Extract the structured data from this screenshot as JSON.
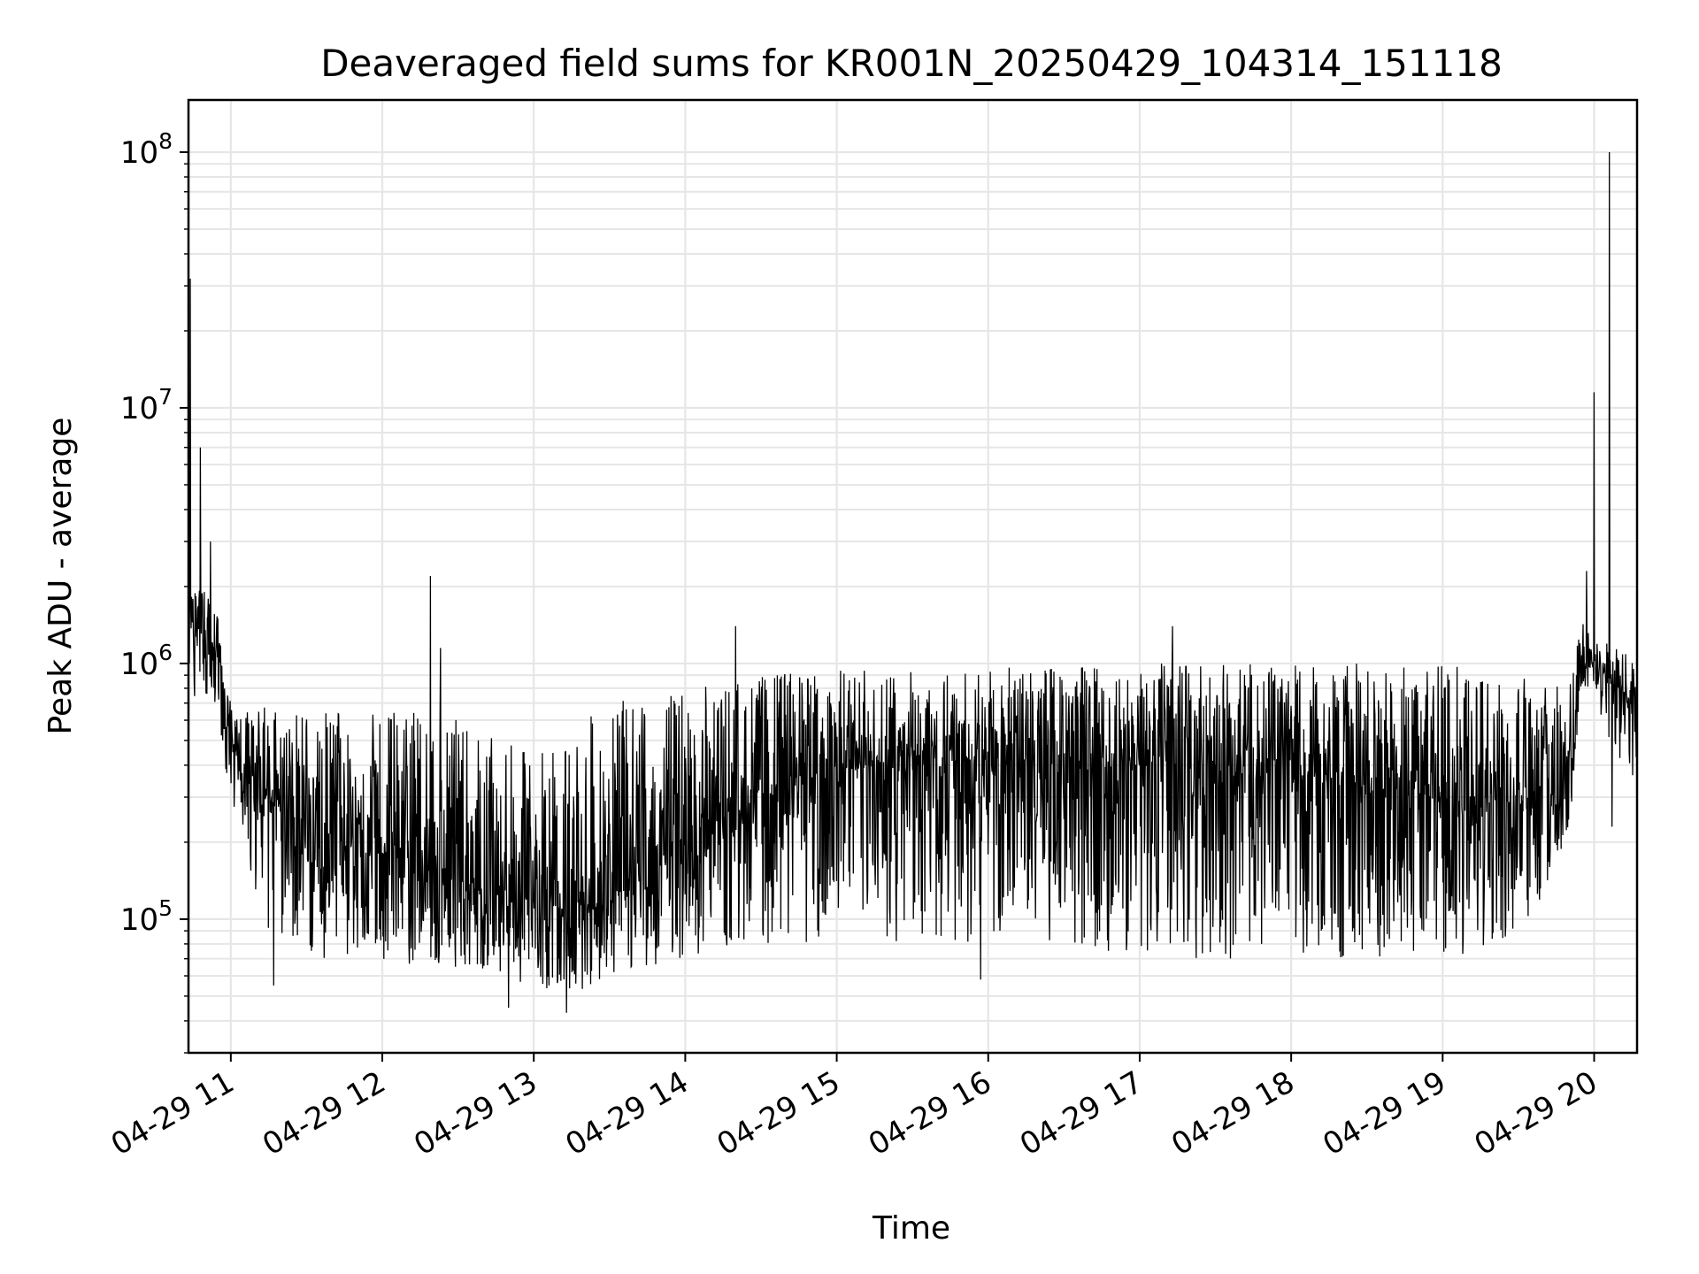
{
  "chart_data": {
    "type": "line",
    "title": "Deaveraged field sums for KR001N_20250429_104314_151118",
    "xlabel": "Time",
    "ylabel": "Peak ADU - average",
    "y_scale": "log",
    "ylim": [
      30000,
      160000000
    ],
    "xlim": [
      "2025-04-29 10:43:14",
      "2025-04-29 20:17:00"
    ],
    "y_ticks": [
      {
        "base": "10",
        "exp": "5",
        "value": 100000
      },
      {
        "base": "10",
        "exp": "6",
        "value": 1000000
      },
      {
        "base": "10",
        "exp": "7",
        "value": 10000000
      },
      {
        "base": "10",
        "exp": "8",
        "value": 100000000
      }
    ],
    "x_ticks": [
      {
        "label": "04-29 11",
        "time": "2025-04-29 11:00"
      },
      {
        "label": "04-29 12",
        "time": "2025-04-29 12:00"
      },
      {
        "label": "04-29 13",
        "time": "2025-04-29 13:00"
      },
      {
        "label": "04-29 14",
        "time": "2025-04-29 14:00"
      },
      {
        "label": "04-29 15",
        "time": "2025-04-29 15:00"
      },
      {
        "label": "04-29 16",
        "time": "2025-04-29 16:00"
      },
      {
        "label": "04-29 17",
        "time": "2025-04-29 17:00"
      },
      {
        "label": "04-29 18",
        "time": "2025-04-29 18:00"
      },
      {
        "label": "04-29 19",
        "time": "2025-04-29 19:00"
      },
      {
        "label": "04-29 20",
        "time": "2025-04-29 20:00"
      }
    ],
    "grid": true,
    "line_color": "#000000",
    "grid_color": "#e6e6e6",
    "series": [
      {
        "x": [
          "2025-04-29 10:43",
          "2025-04-29 10:45",
          "2025-04-29 10:48",
          "2025-04-29 10:52",
          "2025-04-29 10:55",
          "2025-04-29 10:58",
          "2025-04-29 11:05",
          "2025-04-29 11:15",
          "2025-04-29 11:30",
          "2025-04-29 11:45",
          "2025-04-29 12:00",
          "2025-04-29 12:15",
          "2025-04-29 12:30",
          "2025-04-29 12:45",
          "2025-04-29 13:00",
          "2025-04-29 13:15",
          "2025-04-29 13:30",
          "2025-04-29 13:45",
          "2025-04-29 14:00",
          "2025-04-29 14:15",
          "2025-04-29 14:30",
          "2025-04-29 14:45",
          "2025-04-29 15:00",
          "2025-04-29 15:30",
          "2025-04-29 16:00",
          "2025-04-29 16:30",
          "2025-04-29 17:00",
          "2025-04-29 17:30",
          "2025-04-29 18:00",
          "2025-04-29 18:30",
          "2025-04-29 19:00",
          "2025-04-29 19:30",
          "2025-04-29 19:50",
          "2025-04-29 19:55",
          "2025-04-29 20:00",
          "2025-04-29 20:05",
          "2025-04-29 20:10",
          "2025-04-29 20:17"
        ],
        "center": [
          1500000,
          1400000,
          1300000,
          1200000,
          1000000,
          600000,
          350000,
          300000,
          250000,
          200000,
          180000,
          160000,
          140000,
          130000,
          120000,
          110000,
          120000,
          150000,
          200000,
          250000,
          300000,
          350000,
          380000,
          400000,
          420000,
          420000,
          400000,
          380000,
          350000,
          330000,
          300000,
          280000,
          300000,
          1000000,
          900000,
          850000,
          800000,
          700000
        ],
        "low": [
          700000,
          700000,
          800000,
          700000,
          600000,
          350000,
          200000,
          80000,
          70000,
          70000,
          70000,
          65000,
          65000,
          60000,
          55000,
          50000,
          60000,
          65000,
          70000,
          75000,
          80000,
          80000,
          80000,
          80000,
          80000,
          80000,
          70000,
          70000,
          70000,
          70000,
          70000,
          70000,
          200000,
          800000,
          700000,
          500000,
          350000,
          350000
        ],
        "high": [
          2500000,
          2200000,
          2000000,
          1800000,
          1500000,
          800000,
          650000,
          700000,
          650000,
          650000,
          650000,
          700000,
          600000,
          500000,
          450000,
          550000,
          700000,
          750000,
          800000,
          850000,
          900000,
          950000,
          950000,
          950000,
          950000,
          1000000,
          1000000,
          1000000,
          1000000,
          1000000,
          1000000,
          950000,
          800000,
          1500000,
          1200000,
          1200000,
          1200000,
          1300000
        ]
      }
    ],
    "spikes": [
      {
        "time": "2025-04-29 10:44",
        "value": 32000000
      },
      {
        "time": "2025-04-29 10:48",
        "value": 7000000
      },
      {
        "time": "2025-04-29 10:52",
        "value": 3000000
      },
      {
        "time": "2025-04-29 11:17",
        "value": 55000
      },
      {
        "time": "2025-04-29 12:19",
        "value": 2200000
      },
      {
        "time": "2025-04-29 12:23",
        "value": 1150000
      },
      {
        "time": "2025-04-29 12:50",
        "value": 45000
      },
      {
        "time": "2025-04-29 13:13",
        "value": 43000
      },
      {
        "time": "2025-04-29 14:20",
        "value": 1400000
      },
      {
        "time": "2025-04-29 15:57",
        "value": 58000
      },
      {
        "time": "2025-04-29 17:13",
        "value": 1400000
      },
      {
        "time": "2025-04-29 19:57",
        "value": 2300000
      },
      {
        "time": "2025-04-29 20:00",
        "value": 11500000
      },
      {
        "time": "2025-04-29 20:06",
        "value": 100000000
      },
      {
        "time": "2025-04-29 20:07",
        "value": 230000
      }
    ]
  }
}
